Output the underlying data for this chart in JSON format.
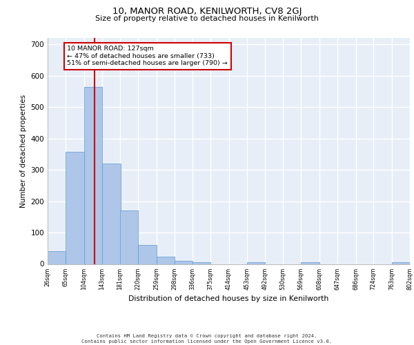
{
  "title": "10, MANOR ROAD, KENILWORTH, CV8 2GJ",
  "subtitle": "Size of property relative to detached houses in Kenilworth",
  "xlabel": "Distribution of detached houses by size in Kenilworth",
  "ylabel": "Number of detached properties",
  "bar_color": "#aec6e8",
  "bar_edge_color": "#5b9bd5",
  "background_color": "#e8eef8",
  "grid_color": "#ffffff",
  "vline_x": 127,
  "vline_color": "#cc0000",
  "annotation_text": "10 MANOR ROAD: 127sqm\n← 47% of detached houses are smaller (733)\n51% of semi-detached houses are larger (790) →",
  "annotation_box_color": "#ffffff",
  "annotation_box_edge": "#cc0000",
  "bins": [
    26,
    65,
    104,
    143,
    181,
    220,
    259,
    298,
    336,
    375,
    414,
    453,
    492,
    530,
    569,
    608,
    647,
    686,
    724,
    763,
    802
  ],
  "counts": [
    40,
    357,
    563,
    320,
    170,
    60,
    22,
    10,
    5,
    0,
    0,
    5,
    0,
    0,
    5,
    0,
    0,
    0,
    0,
    5
  ],
  "ylim": [
    0,
    720
  ],
  "yticks": [
    0,
    100,
    200,
    300,
    400,
    500,
    600,
    700
  ],
  "footer_line1": "Contains HM Land Registry data © Crown copyright and database right 2024.",
  "footer_line2": "Contains public sector information licensed under the Open Government Licence v3.0."
}
